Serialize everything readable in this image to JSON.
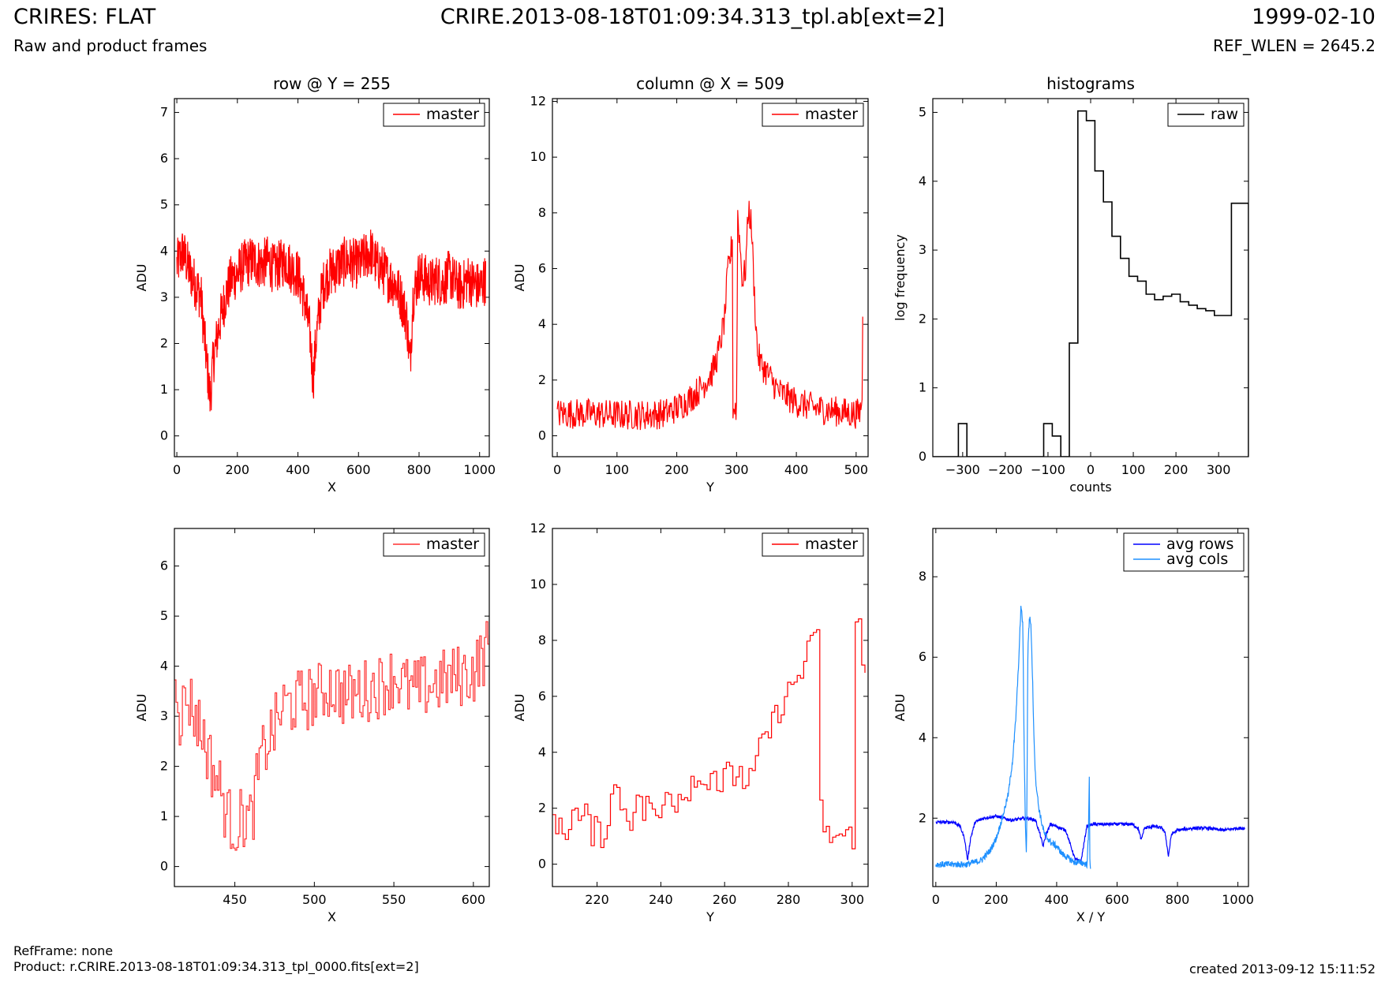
{
  "header": {
    "title_left": "CRIRES: FLAT",
    "subtitle_left": "Raw and product frames",
    "title_center": "CRIRE.2013-08-18T01:09:34.313_tpl.ab[ext=2]",
    "date_right": "1999-02-10",
    "wlen_right": "REF_WLEN = 2645.2"
  },
  "footer": {
    "ref_frame": "RefFrame: none",
    "product": "Product: r.CRIRE.2013-08-18T01:09:34.313_tpl_0000.fits[ext=2]",
    "created": "created 2013-09-12 15:11:52"
  },
  "colors": {
    "master": "#ff0000",
    "master_zoom": "#ff3030",
    "raw": "#000000",
    "avg_rows": "#0000ff",
    "avg_cols": "#1e90ff"
  },
  "chart_data": [
    {
      "id": "row",
      "type": "line",
      "title": "row @ Y = 255",
      "xlabel": "X",
      "ylabel": "ADU",
      "xlim": [
        -8,
        1032
      ],
      "ylim": [
        -0.45,
        7.3
      ],
      "xticks": [
        0,
        200,
        400,
        600,
        800,
        1000
      ],
      "yticks": [
        0,
        1,
        2,
        3,
        4,
        5,
        6,
        7
      ],
      "legend_position": "top-right",
      "series": [
        {
          "name": "master",
          "color": "#ff0000",
          "step": false,
          "x": [
            0,
            20,
            40,
            60,
            80,
            90,
            100,
            110,
            120,
            140,
            160,
            180,
            200,
            220,
            250,
            280,
            300,
            320,
            340,
            360,
            380,
            400,
            420,
            440,
            450,
            460,
            480,
            500,
            520,
            540,
            560,
            600,
            640,
            660,
            680,
            700,
            720,
            740,
            760,
            770,
            780,
            800,
            820,
            840,
            860,
            880,
            900,
            920,
            940,
            960,
            980,
            1000,
            1020
          ],
          "y": [
            3.7,
            4.0,
            3.6,
            3.3,
            3.0,
            2.2,
            1.5,
            0.8,
            1.6,
            2.4,
            3.0,
            3.4,
            3.5,
            3.7,
            3.8,
            3.7,
            3.8,
            3.6,
            3.7,
            3.8,
            3.6,
            3.5,
            3.0,
            2.2,
            1.2,
            2.1,
            3.2,
            3.5,
            3.6,
            3.7,
            3.8,
            3.7,
            4.0,
            3.7,
            3.6,
            3.4,
            3.3,
            3.0,
            2.5,
            1.5,
            3.0,
            3.5,
            3.4,
            3.3,
            3.4,
            3.3,
            3.5,
            3.3,
            3.2,
            3.4,
            3.3,
            3.2,
            3.4
          ],
          "noise": 0.55,
          "points": 1024
        }
      ]
    },
    {
      "id": "column",
      "type": "line",
      "title": "column @ X = 509",
      "xlabel": "Y",
      "ylabel": "ADU",
      "xlim": [
        -8,
        520
      ],
      "ylim": [
        -0.75,
        12.1
      ],
      "xticks": [
        0,
        100,
        200,
        300,
        400,
        500
      ],
      "yticks": [
        0,
        2,
        4,
        6,
        8,
        10,
        12
      ],
      "legend_position": "top-right",
      "series": [
        {
          "name": "master",
          "color": "#ff0000",
          "step": false,
          "x": [
            0,
            50,
            100,
            150,
            180,
            200,
            220,
            240,
            260,
            270,
            280,
            285,
            290,
            293,
            294,
            300,
            302,
            310,
            315,
            320,
            325,
            330,
            335,
            340,
            350,
            370,
            400,
            430,
            460,
            490,
            505,
            508,
            510,
            511
          ],
          "y": [
            0.8,
            0.8,
            0.75,
            0.75,
            0.8,
            1.0,
            1.3,
            1.7,
            2.3,
            3.0,
            4.2,
            5.8,
            6.5,
            7.0,
            1.0,
            1.0,
            8.0,
            5.5,
            6.0,
            8.2,
            7.5,
            5.0,
            3.0,
            2.6,
            2.3,
            1.6,
            1.2,
            1.0,
            0.9,
            0.8,
            0.8,
            1.0,
            1.5,
            4.0
          ],
          "noise": 0.55,
          "points": 512
        }
      ]
    },
    {
      "id": "histograms",
      "type": "bar",
      "title": "histograms",
      "xlabel": "counts",
      "ylabel": "log frequency",
      "xlim": [
        -370,
        370
      ],
      "ylim": [
        0,
        5.2
      ],
      "xticks": [
        -300,
        -200,
        -100,
        0,
        100,
        200,
        300
      ],
      "ytick_labels": [
        "−300",
        "−200",
        "−100",
        "0",
        "100",
        "200",
        "300"
      ],
      "yticks": [
        0,
        1,
        2,
        3,
        4,
        5
      ],
      "legend_position": "top-right",
      "series": [
        {
          "name": "raw",
          "color": "#000000",
          "step": true,
          "bin_edges": [
            -370,
            -350,
            -330,
            -310,
            -290,
            -270,
            -250,
            -230,
            -210,
            -190,
            -170,
            -150,
            -130,
            -110,
            -90,
            -70,
            -50,
            -30,
            -10,
            10,
            30,
            50,
            70,
            90,
            110,
            130,
            150,
            170,
            190,
            210,
            230,
            250,
            270,
            290,
            310,
            330,
            350,
            370
          ],
          "values": [
            0,
            0,
            0,
            0.48,
            0,
            0,
            0,
            0,
            0,
            0,
            0,
            0,
            0,
            0.48,
            0.3,
            0,
            1.65,
            5.02,
            4.88,
            4.15,
            3.7,
            3.2,
            2.88,
            2.62,
            2.55,
            2.36,
            2.28,
            2.33,
            2.36,
            2.25,
            2.2,
            2.15,
            2.12,
            2.05,
            2.05,
            3.68,
            3.68
          ]
        }
      ]
    },
    {
      "id": "row_zoom",
      "type": "line",
      "title": "",
      "xlabel": "X",
      "ylabel": "ADU",
      "xlim": [
        412,
        610
      ],
      "ylim": [
        -0.4,
        6.75
      ],
      "xticks": [
        450,
        500,
        550,
        600
      ],
      "yticks": [
        0,
        1,
        2,
        3,
        4,
        5,
        6
      ],
      "legend_position": "top-right",
      "series": [
        {
          "name": "master",
          "color": "#ff3030",
          "step": true,
          "x": [
            412,
            415,
            420,
            425,
            430,
            435,
            440,
            445,
            450,
            455,
            460,
            465,
            470,
            475,
            480,
            490,
            500,
            510,
            520,
            530,
            540,
            550,
            560,
            570,
            580,
            590,
            600,
            605,
            610
          ],
          "y": [
            4.2,
            3.0,
            3.4,
            3.0,
            2.6,
            2.0,
            1.6,
            1.0,
            0.8,
            1.0,
            0.9,
            2.0,
            2.5,
            2.8,
            3.2,
            3.3,
            3.4,
            3.6,
            3.4,
            3.5,
            3.6,
            3.8,
            3.5,
            3.6,
            3.7,
            3.8,
            3.9,
            4.2,
            4.4
          ],
          "noise": 0.65,
          "points": 198
        }
      ]
    },
    {
      "id": "column_zoom",
      "type": "line",
      "title": "",
      "xlabel": "Y",
      "ylabel": "ADU",
      "xlim": [
        206,
        305
      ],
      "ylim": [
        -0.8,
        12.0
      ],
      "xticks": [
        220,
        240,
        260,
        280,
        300
      ],
      "yticks": [
        0,
        2,
        4,
        6,
        8,
        10,
        12
      ],
      "legend_position": "top-right",
      "series": [
        {
          "name": "master",
          "color": "#ff0000",
          "step": true,
          "x": [
            206,
            208,
            210,
            212,
            214,
            216,
            218,
            220,
            222,
            224,
            226,
            228,
            230,
            232,
            234,
            236,
            238,
            240,
            242,
            244,
            246,
            248,
            250,
            252,
            254,
            256,
            258,
            260,
            262,
            264,
            266,
            268,
            270,
            272,
            274,
            276,
            278,
            280,
            282,
            284,
            286,
            288,
            289,
            290,
            300,
            301,
            302,
            303,
            304
          ],
          "y": [
            1.9,
            1.2,
            1.0,
            2.2,
            1.5,
            1.8,
            1.1,
            1.3,
            0.9,
            2.5,
            2.7,
            2.0,
            1.5,
            2.6,
            1.7,
            2.6,
            1.3,
            1.9,
            2.8,
            2.2,
            2.6,
            2.5,
            3.4,
            2.7,
            3.0,
            3.6,
            2.6,
            3.3,
            3.0,
            3.4,
            2.9,
            3.0,
            3.8,
            4.5,
            4.8,
            5.4,
            5.8,
            6.2,
            6.6,
            6.9,
            7.6,
            8.0,
            8.8,
            1.0,
            1.0,
            9.3,
            8.5,
            6.8,
            6.8
          ],
          "noise": 0.5,
          "points": 98
        }
      ]
    },
    {
      "id": "averages",
      "type": "line",
      "title": "",
      "xlabel": "X / Y",
      "ylabel": "ADU",
      "xlim": [
        -10,
        1035
      ],
      "ylim": [
        0.3,
        9.2
      ],
      "xticks": [
        0,
        200,
        400,
        600,
        800,
        1000
      ],
      "yticks": [
        2,
        4,
        6,
        8
      ],
      "legend_position": "top-right",
      "series": [
        {
          "name": "avg rows",
          "color": "#0000ff",
          "step": false,
          "x": [
            0,
            60,
            80,
            95,
            105,
            115,
            130,
            160,
            200,
            250,
            300,
            330,
            345,
            355,
            365,
            380,
            430,
            460,
            480,
            500,
            520,
            560,
            600,
            650,
            670,
            680,
            690,
            720,
            750,
            760,
            770,
            780,
            800,
            850,
            900,
            950,
            1000,
            1023
          ],
          "y": [
            1.9,
            1.9,
            1.8,
            1.5,
            0.95,
            1.5,
            1.9,
            2.0,
            2.05,
            1.95,
            2.0,
            1.95,
            1.6,
            1.3,
            1.6,
            1.85,
            1.7,
            1.0,
            0.9,
            1.8,
            1.85,
            1.85,
            1.85,
            1.85,
            1.75,
            1.45,
            1.75,
            1.8,
            1.75,
            1.6,
            1.05,
            1.6,
            1.7,
            1.75,
            1.75,
            1.7,
            1.75,
            1.75
          ],
          "noise": 0.04,
          "points": 1024
        },
        {
          "name": "avg cols",
          "color": "#1e90ff",
          "step": false,
          "x": [
            0,
            100,
            150,
            180,
            200,
            220,
            240,
            255,
            265,
            275,
            282,
            288,
            292,
            296,
            300,
            305,
            310,
            315,
            320,
            325,
            330,
            340,
            350,
            360,
            380,
            400,
            420,
            440,
            460,
            480,
            500,
            505,
            508,
            510,
            512
          ],
          "y": [
            0.85,
            0.85,
            0.95,
            1.2,
            1.5,
            2.0,
            2.6,
            3.5,
            4.5,
            6.0,
            7.3,
            6.8,
            4.0,
            2.0,
            1.0,
            6.3,
            7.0,
            6.8,
            5.5,
            4.0,
            3.0,
            2.3,
            1.9,
            1.6,
            1.4,
            1.3,
            1.1,
            1.0,
            0.9,
            0.9,
            0.85,
            1.5,
            3.0,
            1.0,
            0.8
          ],
          "noise": 0.08,
          "points": 512
        }
      ]
    }
  ]
}
